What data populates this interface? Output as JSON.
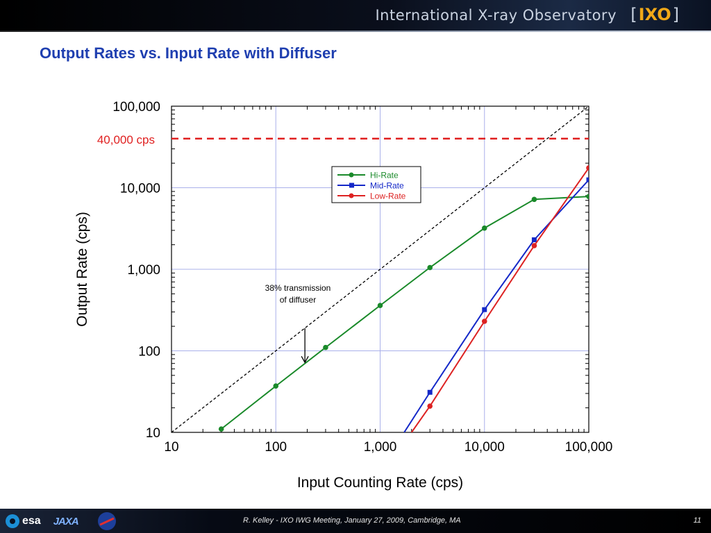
{
  "header": {
    "title": "International X-ray Observatory",
    "logo_left_bracket": "[",
    "logo_text": "IXO",
    "logo_right_bracket": "]"
  },
  "slide": {
    "title": "Output Rates vs. Input Rate with Diffuser"
  },
  "footer": {
    "text": "R. Kelley - IXO IWG Meeting, January 27, 2009, Cambridge, MA",
    "page": "11",
    "logos": [
      "esa",
      "JAXA",
      "NASA"
    ]
  },
  "colors": {
    "title_blue": "#1f3fb0",
    "hi_rate": "#1a8a2a",
    "mid_rate": "#1428c8",
    "low_rate": "#dd2222",
    "limit_line": "#e02020",
    "grid": "#aab0ea",
    "logo_orange": "#f0a818"
  },
  "chart_data": {
    "type": "line",
    "xscale": "log",
    "yscale": "log",
    "xlim": [
      10,
      100000
    ],
    "ylim": [
      10,
      100000
    ],
    "xlabel": "Input Counting Rate (cps)",
    "ylabel": "Output Rate (cps)",
    "x_ticks": [
      10,
      100,
      1000,
      10000,
      100000
    ],
    "x_tick_labels": [
      "10",
      "100",
      "1,000",
      "10,000",
      "100,000"
    ],
    "y_ticks": [
      10,
      100,
      1000,
      10000,
      100000
    ],
    "y_tick_labels": [
      "10",
      "100",
      "1,000",
      "10,000",
      "100,000"
    ],
    "grid": true,
    "legend_position": "center-right",
    "series": [
      {
        "name": "Hi-Rate",
        "color": "#1a8a2a",
        "marker": "circle",
        "x": [
          30,
          100,
          300,
          1000,
          3000,
          10000,
          30000,
          100000
        ],
        "y": [
          11,
          37,
          110,
          360,
          1050,
          3200,
          7200,
          7800
        ]
      },
      {
        "name": "Mid-Rate",
        "color": "#1428c8",
        "marker": "square",
        "x": [
          1700,
          3000,
          10000,
          30000,
          100000
        ],
        "y": [
          10,
          31,
          320,
          2300,
          12500
        ],
        "first_point_off_axis": true
      },
      {
        "name": "Low-Rate",
        "color": "#dd2222",
        "marker": "circle",
        "x": [
          2000,
          3000,
          10000,
          30000,
          100000
        ],
        "y": [
          10,
          21,
          230,
          1950,
          17500
        ],
        "first_point_off_axis": true
      }
    ],
    "reference_lines": [
      {
        "kind": "diagonal",
        "style": "dashed",
        "color": "#000000",
        "x": [
          10,
          100000
        ],
        "y": [
          10,
          100000
        ]
      },
      {
        "kind": "horizontal",
        "style": "dashed",
        "color": "#e02020",
        "y": 40000,
        "label": "40,000 cps"
      }
    ],
    "annotations": [
      {
        "text_line1": "38% transmission",
        "text_line2": "of diffuser",
        "arrow_x": 190,
        "arrow_from_y": 190,
        "arrow_to_y": 72
      }
    ]
  }
}
